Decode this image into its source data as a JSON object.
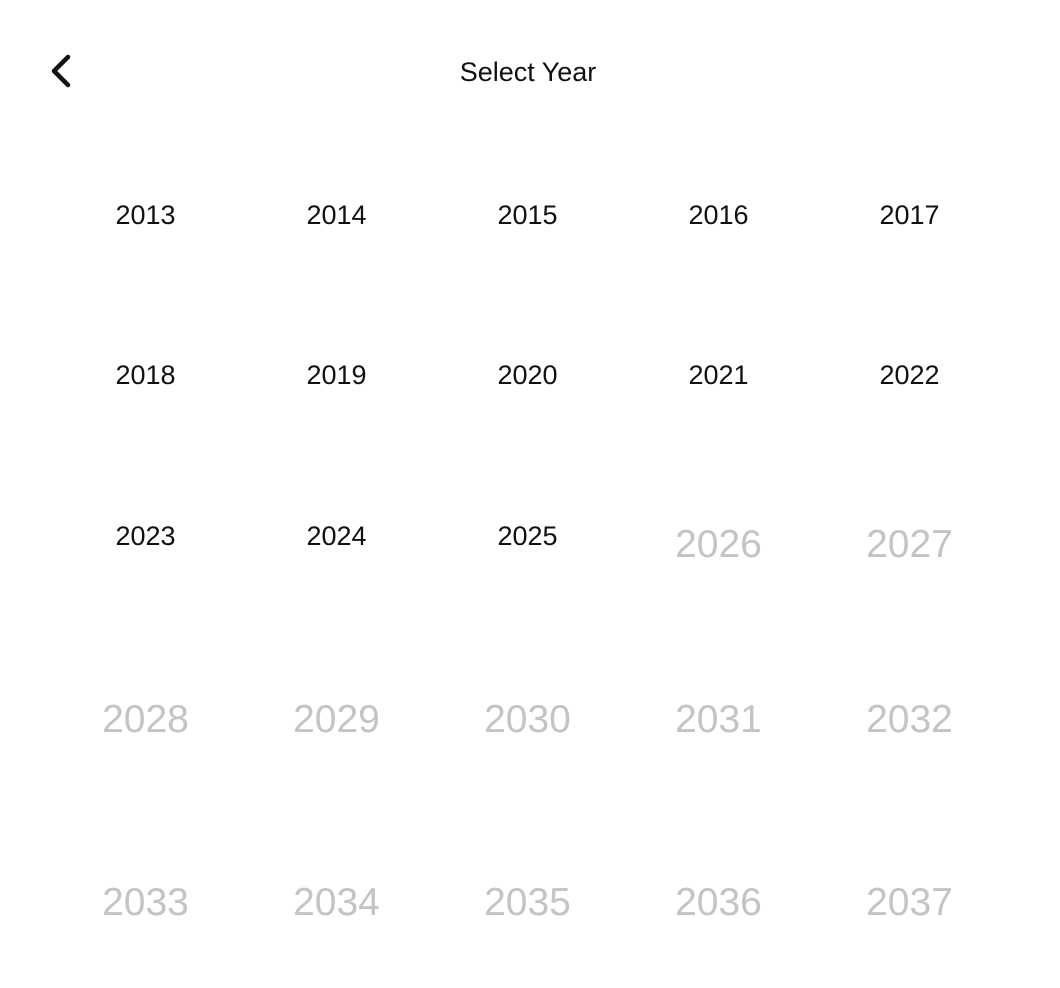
{
  "header": {
    "title": "Select Year",
    "back_icon": "chevron-left-icon"
  },
  "colors": {
    "enabled_text": "#111111",
    "disabled_text": "#c4c4c4",
    "background": "#ffffff"
  },
  "years": [
    {
      "label": "2013",
      "enabled": true
    },
    {
      "label": "2014",
      "enabled": true
    },
    {
      "label": "2015",
      "enabled": true
    },
    {
      "label": "2016",
      "enabled": true
    },
    {
      "label": "2017",
      "enabled": true
    },
    {
      "label": "2018",
      "enabled": true
    },
    {
      "label": "2019",
      "enabled": true
    },
    {
      "label": "2020",
      "enabled": true
    },
    {
      "label": "2021",
      "enabled": true
    },
    {
      "label": "2022",
      "enabled": true
    },
    {
      "label": "2023",
      "enabled": true
    },
    {
      "label": "2024",
      "enabled": true
    },
    {
      "label": "2025",
      "enabled": true
    },
    {
      "label": "2026",
      "enabled": false
    },
    {
      "label": "2027",
      "enabled": false
    },
    {
      "label": "2028",
      "enabled": false
    },
    {
      "label": "2029",
      "enabled": false
    },
    {
      "label": "2030",
      "enabled": false
    },
    {
      "label": "2031",
      "enabled": false
    },
    {
      "label": "2032",
      "enabled": false
    },
    {
      "label": "2033",
      "enabled": false
    },
    {
      "label": "2034",
      "enabled": false
    },
    {
      "label": "2035",
      "enabled": false
    },
    {
      "label": "2036",
      "enabled": false
    },
    {
      "label": "2037",
      "enabled": false
    }
  ]
}
